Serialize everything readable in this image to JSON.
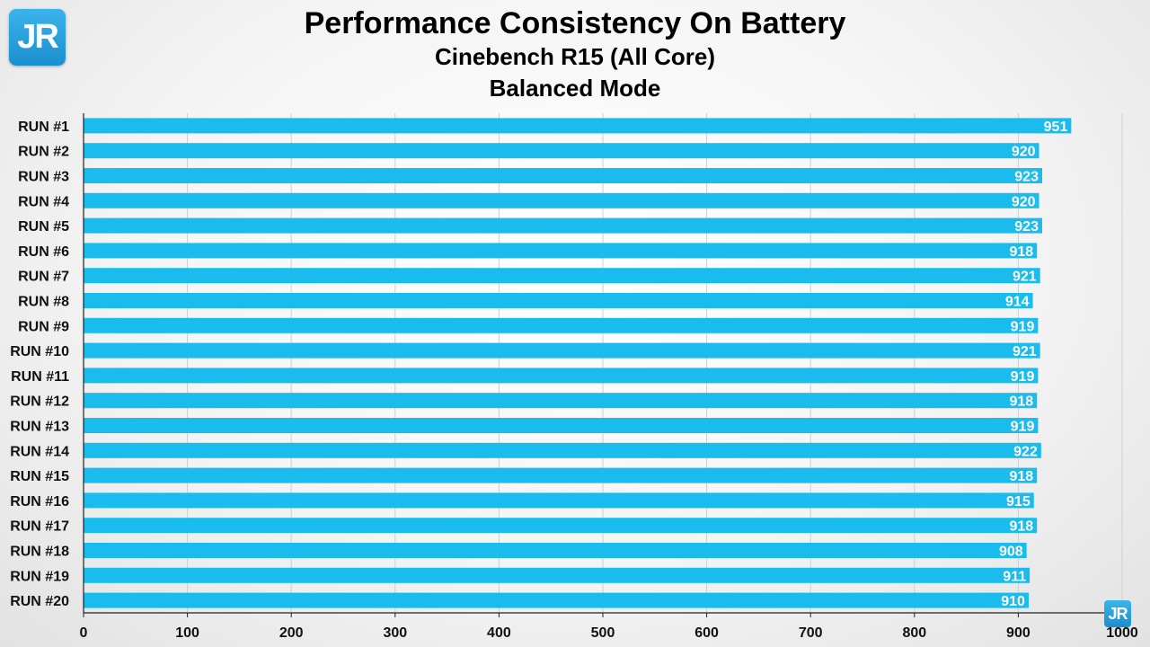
{
  "logo_text": "JR",
  "chart_data": {
    "type": "bar",
    "orientation": "horizontal",
    "title": "Performance Consistency On Battery",
    "subtitle": [
      "Cinebench R15 (All Core)",
      "Balanced Mode"
    ],
    "categories": [
      "RUN #1",
      "RUN #2",
      "RUN #3",
      "RUN #4",
      "RUN #5",
      "RUN #6",
      "RUN #7",
      "RUN #8",
      "RUN #9",
      "RUN #10",
      "RUN #11",
      "RUN #12",
      "RUN #13",
      "RUN #14",
      "RUN #15",
      "RUN #16",
      "RUN #17",
      "RUN #18",
      "RUN #19",
      "RUN #20"
    ],
    "values": [
      951,
      920,
      923,
      920,
      923,
      918,
      921,
      914,
      919,
      921,
      919,
      918,
      919,
      922,
      918,
      915,
      918,
      908,
      911,
      910
    ],
    "xlim": [
      0,
      1000
    ],
    "xticks": [
      0,
      100,
      200,
      300,
      400,
      500,
      600,
      700,
      800,
      900,
      1000
    ],
    "grid": "vertical",
    "bar_color": "#19bcec",
    "data_labels": "inside-end"
  }
}
